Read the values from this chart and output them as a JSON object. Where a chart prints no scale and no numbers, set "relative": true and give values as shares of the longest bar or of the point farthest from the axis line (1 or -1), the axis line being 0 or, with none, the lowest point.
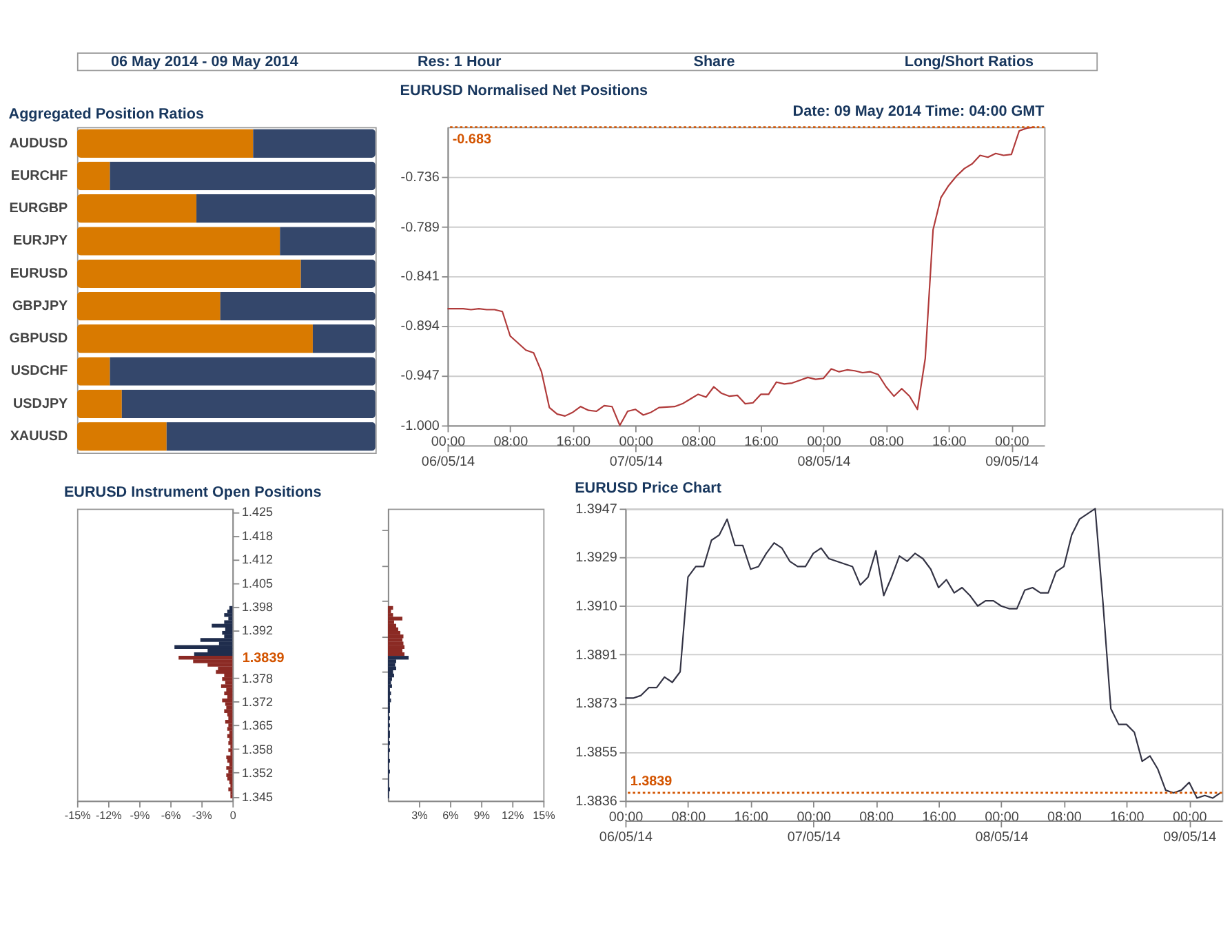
{
  "chart_data": [
    {
      "type": "bar",
      "title": "Aggregated Position Ratios",
      "orientation": "horizontal",
      "stacked": true,
      "relative": true,
      "categories": [
        "AUDUSD",
        "EURCHF",
        "EURGBP",
        "EURJPY",
        "EURUSD",
        "GBPJPY",
        "GBPUSD",
        "USDCHF",
        "USDJPY",
        "XAUUSD"
      ],
      "series": [
        {
          "color": "#d97a00",
          "values": [
            0.59,
            0.11,
            0.4,
            0.68,
            0.75,
            0.48,
            0.79,
            0.11,
            0.15,
            0.3
          ]
        },
        {
          "color": "#34476b",
          "values": [
            0.41,
            0.89,
            0.6,
            0.32,
            0.25,
            0.52,
            0.21,
            0.89,
            0.85,
            0.7
          ]
        }
      ],
      "annotations": [
        "06 May 2014 - 09 May 2014",
        "Res: 1 Hour",
        "Share",
        "Long/Short Ratios"
      ]
    },
    {
      "type": "line",
      "title": "EURUSD Normalised Net Positions",
      "grid": "y",
      "xlim": [
        "2014-05-06T00:00",
        "2014-05-09T04:12"
      ],
      "xticks": [
        {
          "value": "2014-05-06T00:00",
          "label": "00:00"
        },
        {
          "value": "2014-05-06T08:00",
          "label": "08:00"
        },
        {
          "value": "2014-05-06T16:00",
          "label": "16:00"
        },
        {
          "value": "2014-05-07T00:00",
          "label": "00:00"
        },
        {
          "value": "2014-05-07T08:00",
          "label": "08:00"
        },
        {
          "value": "2014-05-07T16:00",
          "label": "16:00"
        },
        {
          "value": "2014-05-08T00:00",
          "label": "00:00"
        },
        {
          "value": "2014-05-08T08:00",
          "label": "08:00"
        },
        {
          "value": "2014-05-08T16:00",
          "label": "16:00"
        },
        {
          "value": "2014-05-09T00:00",
          "label": "00:00"
        }
      ],
      "x2lim": [
        "2014-05-06T00:00",
        "2014-05-09T04:12"
      ],
      "x2ticks": [
        {
          "value": "2014-05-06",
          "label": "06/05/14"
        },
        {
          "value": "2014-05-07",
          "label": "07/05/14"
        },
        {
          "value": "2014-05-08",
          "label": "08/05/14"
        },
        {
          "value": "2014-05-09",
          "label": "09/05/14"
        }
      ],
      "ylim": [
        -1.0,
        -0.683
      ],
      "yticks": [
        {
          "value": -1.0,
          "label": "-1.000"
        },
        {
          "value": -0.947,
          "label": "-0.947"
        },
        {
          "value": -0.894,
          "label": "-0.894"
        },
        {
          "value": -0.841,
          "label": "-0.841"
        },
        {
          "value": -0.789,
          "label": "-0.789"
        },
        {
          "value": -0.736,
          "label": "-0.736"
        }
      ],
      "series": [
        {
          "color": "#b03a3a",
          "x": [
            "2014-05-06T00:00",
            "2014-05-06T02:00",
            "2014-05-06T03:00",
            "2014-05-06T04:00",
            "2014-05-06T05:00",
            "2014-05-06T06:00",
            "2014-05-06T07:00",
            "2014-05-06T08:00",
            "2014-05-06T10:00",
            "2014-05-06T11:00",
            "2014-05-06T12:00",
            "2014-05-06T13:00",
            "2014-05-06T14:00",
            "2014-05-06T15:00",
            "2014-05-06T16:00",
            "2014-05-06T17:00",
            "2014-05-06T18:00",
            "2014-05-06T19:00",
            "2014-05-06T20:00",
            "2014-05-06T21:00",
            "2014-05-06T22:00",
            "2014-05-06T23:00",
            "2014-05-07T00:00",
            "2014-05-07T01:00",
            "2014-05-07T02:00",
            "2014-05-07T03:00",
            "2014-05-07T05:00",
            "2014-05-07T06:00",
            "2014-05-07T07:00",
            "2014-05-07T08:00",
            "2014-05-07T09:00",
            "2014-05-07T10:00",
            "2014-05-07T11:00",
            "2014-05-07T12:00",
            "2014-05-07T13:00",
            "2014-05-07T14:00",
            "2014-05-07T15:00",
            "2014-05-07T16:00",
            "2014-05-07T17:00",
            "2014-05-07T18:00",
            "2014-05-07T19:00",
            "2014-05-07T20:00",
            "2014-05-07T21:00",
            "2014-05-07T22:00",
            "2014-05-07T23:00",
            "2014-05-08T00:00",
            "2014-05-08T01:00",
            "2014-05-08T02:00",
            "2014-05-08T03:00",
            "2014-05-08T04:00",
            "2014-05-08T05:00",
            "2014-05-08T06:00",
            "2014-05-08T07:00",
            "2014-05-08T08:00",
            "2014-05-08T09:00",
            "2014-05-08T10:00",
            "2014-05-08T11:00",
            "2014-05-08T12:00",
            "2014-05-08T13:00",
            "2014-05-08T14:00",
            "2014-05-08T15:00",
            "2014-05-08T16:00",
            "2014-05-08T17:00",
            "2014-05-08T18:00",
            "2014-05-08T19:00",
            "2014-05-08T20:00",
            "2014-05-08T21:00",
            "2014-05-08T22:00",
            "2014-05-08T23:00",
            "2014-05-09T00:00",
            "2014-05-09T01:00",
            "2014-05-09T02:00",
            "2014-05-09T03:00"
          ],
          "values": [
            -0.876,
            -0.876,
            -0.877,
            -0.876,
            -0.877,
            -0.877,
            -0.879,
            -0.905,
            -0.92,
            -0.923,
            -0.943,
            -0.981,
            -0.988,
            -0.99,
            -0.986,
            -0.98,
            -0.984,
            -0.985,
            -0.979,
            -0.98,
            -1.0,
            -0.985,
            -0.983,
            -0.989,
            -0.986,
            -0.981,
            -0.98,
            -0.977,
            -0.972,
            -0.967,
            -0.97,
            -0.959,
            -0.966,
            -0.969,
            -0.968,
            -0.977,
            -0.976,
            -0.967,
            -0.967,
            -0.954,
            -0.956,
            -0.955,
            -0.952,
            -0.949,
            -0.951,
            -0.95,
            -0.94,
            -0.943,
            -0.941,
            -0.942,
            -0.944,
            -0.943,
            -0.946,
            -0.959,
            -0.969,
            -0.961,
            -0.969,
            -0.983,
            -0.929,
            -0.792,
            -0.758,
            -0.745,
            -0.735,
            -0.727,
            -0.722,
            -0.713,
            -0.715,
            -0.711,
            -0.713,
            -0.712,
            -0.687,
            -0.684,
            -0.683
          ]
        }
      ],
      "ref_lines": [
        {
          "axis": "y",
          "value": -0.683,
          "label": "-0.683",
          "color": "#d35400",
          "line_style": "dotted"
        }
      ],
      "annotations": [
        "Date: 09 May 2014 Time: 04:00 GMT"
      ]
    },
    {
      "type": "bar",
      "title": "EURUSD Instrument Open Positions",
      "orientation": "horizontal",
      "xlim": [
        -15,
        0
      ],
      "xticks": [
        {
          "value": -15,
          "label": "-15%"
        },
        {
          "value": -12,
          "label": "-12%"
        },
        {
          "value": -9,
          "label": "-9%"
        },
        {
          "value": -6,
          "label": "-6%"
        },
        {
          "value": -3,
          "label": "-3%"
        },
        0
      ],
      "ylim": [
        1.3438,
        1.4259
      ],
      "yticks": [
        {
          "value": 1.345,
          "label": "1.345"
        },
        {
          "value": 1.3517,
          "label": "1.352"
        },
        {
          "value": 1.3583,
          "label": "1.358"
        },
        {
          "value": 1.365,
          "label": "1.365"
        },
        {
          "value": 1.3717,
          "label": "1.372"
        },
        {
          "value": 1.3783,
          "label": "1.378"
        },
        {
          "value": 1.3917,
          "label": "1.392"
        },
        {
          "value": 1.3983,
          "label": "1.398"
        },
        {
          "value": 1.405,
          "label": "1.405"
        },
        {
          "value": 1.4117,
          "label": "1.412"
        },
        {
          "value": 1.4183,
          "label": "1.418"
        },
        {
          "value": 1.425,
          "label": "1.425"
        }
      ],
      "series": [
        {
          "color": "#1f2d4d",
          "x": [
            1.398,
            1.397,
            1.396,
            1.395,
            1.394,
            1.393,
            1.392,
            1.391,
            1.39,
            1.389,
            1.388,
            1.387,
            1.386,
            1.385
          ],
          "values": [
            -0.3,
            -0.5,
            -0.8,
            -0.4,
            -0.8,
            -2.0,
            -0.7,
            -1.0,
            -0.8,
            -3.1,
            -1.3,
            -5.6,
            -2.4,
            -3.7
          ]
        },
        {
          "color": "#8b2a24",
          "x": [
            1.384,
            1.383,
            1.382,
            1.381,
            1.38,
            1.379,
            1.378,
            1.377,
            1.376,
            1.375,
            1.374,
            1.373,
            1.372,
            1.371,
            1.37,
            1.369,
            1.368,
            1.367,
            1.366,
            1.365,
            1.364,
            1.363,
            1.362,
            1.361,
            1.36,
            1.359,
            1.358,
            1.357,
            1.356,
            1.355,
            1.354,
            1.353,
            1.352,
            1.351,
            1.35,
            1.349,
            1.348,
            1.347,
            1.346,
            1.345
          ],
          "values": [
            -5.2,
            -3.8,
            -2.4,
            -1.4,
            -1.6,
            -0.8,
            -1.0,
            -0.7,
            -1.1,
            -0.6,
            -0.8,
            -0.5,
            -1.0,
            -0.7,
            -0.6,
            -0.8,
            -0.5,
            -0.4,
            -0.7,
            -0.4,
            -0.5,
            -0.3,
            -0.5,
            -0.3,
            -0.4,
            -0.2,
            -0.4,
            -0.2,
            -0.6,
            -0.5,
            -0.3,
            -0.6,
            -0.4,
            -0.6,
            -0.5,
            -0.3,
            -0.2,
            -0.4,
            -0.2,
            -0.2
          ]
        }
      ],
      "annotations": [
        {
          "text": "1.3839",
          "x": 0,
          "y": 1.3839
        }
      ]
    },
    {
      "type": "bar",
      "orientation": "horizontal",
      "tick_labels": "x",
      "xlim": [
        0,
        15
      ],
      "xticks": [
        {
          "value": 3,
          "label": "3%"
        },
        {
          "value": 6,
          "label": "6%"
        },
        {
          "value": 9,
          "label": "9%"
        },
        {
          "value": 12,
          "label": "12%"
        },
        {
          "value": 15,
          "label": "15%"
        }
      ],
      "ylim": [
        1.3438,
        1.4259
      ],
      "series": [
        {
          "color": "#8b2a24",
          "x": [
            1.398,
            1.397,
            1.396,
            1.395,
            1.394,
            1.393,
            1.392,
            1.391,
            1.39,
            1.389,
            1.388,
            1.387,
            1.386,
            1.385
          ],
          "values": [
            0.5,
            0.3,
            0.5,
            1.4,
            0.6,
            0.8,
            1.0,
            1.2,
            1.5,
            1.4,
            1.5,
            1.6,
            1.4,
            1.6
          ]
        },
        {
          "color": "#1f2d4d",
          "x": [
            1.384,
            1.383,
            1.382,
            1.381,
            1.38,
            1.379,
            1.378,
            1.377,
            1.376,
            1.375,
            1.374,
            1.373,
            1.372,
            1.371,
            1.37,
            1.369,
            1.368,
            1.367,
            1.366,
            1.365,
            1.364,
            1.363,
            1.362,
            1.361,
            1.36,
            1.359,
            1.358,
            1.357,
            1.356,
            1.355,
            1.354,
            1.353,
            1.352,
            1.351,
            1.35,
            1.349,
            1.348,
            1.347,
            1.346,
            1.345
          ],
          "values": [
            2.0,
            0.8,
            0.7,
            0.8,
            0.5,
            0.6,
            0.4,
            0.3,
            0.4,
            0.2,
            0.3,
            0.2,
            0.3,
            0.2,
            0.2,
            0.2,
            0.1,
            0.2,
            0.1,
            0.2,
            0.1,
            0.2,
            0.2,
            0.1,
            0.2,
            0.1,
            0.2,
            0.1,
            0.1,
            0.2,
            0.1,
            0.1,
            0.2,
            0.1,
            0.1,
            0.1,
            0.1,
            0.2,
            0.1,
            0.1
          ]
        }
      ]
    },
    {
      "type": "line",
      "title": "EURUSD Price Chart",
      "grid": "y",
      "xlim": [
        "2014-05-06T00:00",
        "2014-05-09T04:12"
      ],
      "xticks": [
        {
          "value": "2014-05-06T00:00",
          "label": "00:00"
        },
        {
          "value": "2014-05-06T08:00",
          "label": "08:00"
        },
        {
          "value": "2014-05-06T16:00",
          "label": "16:00"
        },
        {
          "value": "2014-05-07T00:00",
          "label": "00:00"
        },
        {
          "value": "2014-05-07T08:00",
          "label": "08:00"
        },
        {
          "value": "2014-05-07T16:00",
          "label": "16:00"
        },
        {
          "value": "2014-05-08T00:00",
          "label": "00:00"
        },
        {
          "value": "2014-05-08T08:00",
          "label": "08:00"
        },
        {
          "value": "2014-05-08T16:00",
          "label": "16:00"
        },
        {
          "value": "2014-05-09T00:00",
          "label": "00:00"
        }
      ],
      "x2lim": [
        "2014-05-06T00:00",
        "2014-05-09T04:12"
      ],
      "x2ticks": [
        {
          "value": "2014-05-06",
          "label": "06/05/14"
        },
        {
          "value": "2014-05-07",
          "label": "07/05/14"
        },
        {
          "value": "2014-05-08",
          "label": "08/05/14"
        },
        {
          "value": "2014-05-09",
          "label": "09/05/14"
        }
      ],
      "ylim": [
        1.3836,
        1.3947
      ],
      "yticks": [
        {
          "value": 1.3836,
          "label": "1.3836"
        },
        {
          "value": 1.38545,
          "label": "1.3855"
        },
        {
          "value": 1.3873,
          "label": "1.3873"
        },
        {
          "value": 1.38915,
          "label": "1.3891"
        },
        {
          "value": 1.391,
          "label": "1.3910"
        },
        {
          "value": 1.39285,
          "label": "1.3929"
        },
        {
          "value": 1.3947,
          "label": "1.3947"
        }
      ],
      "series": [
        {
          "color": "#333344",
          "x": [
            "2014-05-06T00:00",
            "2014-05-06T01:00",
            "2014-05-06T02:00",
            "2014-05-06T03:00",
            "2014-05-06T04:00",
            "2014-05-06T05:00",
            "2014-05-06T06:00",
            "2014-05-06T07:00",
            "2014-05-06T08:00",
            "2014-05-06T09:00",
            "2014-05-06T10:00",
            "2014-05-06T11:00",
            "2014-05-06T12:00",
            "2014-05-06T13:00",
            "2014-05-06T14:00",
            "2014-05-06T15:00",
            "2014-05-06T16:00",
            "2014-05-06T17:00",
            "2014-05-06T18:00",
            "2014-05-06T19:00",
            "2014-05-06T20:00",
            "2014-05-06T21:00",
            "2014-05-06T22:00",
            "2014-05-06T23:00",
            "2014-05-07T00:00",
            "2014-05-07T01:00",
            "2014-05-07T02:00",
            "2014-05-07T05:00",
            "2014-05-07T06:00",
            "2014-05-07T07:00",
            "2014-05-07T08:00",
            "2014-05-07T09:00",
            "2014-05-07T10:00",
            "2014-05-07T11:00",
            "2014-05-07T12:00",
            "2014-05-07T13:00",
            "2014-05-07T14:00",
            "2014-05-07T15:00",
            "2014-05-07T16:00",
            "2014-05-07T17:00",
            "2014-05-07T18:00",
            "2014-05-07T19:00",
            "2014-05-07T20:00",
            "2014-05-07T21:00",
            "2014-05-07T22:00",
            "2014-05-07T23:00",
            "2014-05-08T00:00",
            "2014-05-08T01:00",
            "2014-05-08T02:00",
            "2014-05-08T03:00",
            "2014-05-08T04:00",
            "2014-05-08T05:00",
            "2014-05-08T06:00",
            "2014-05-08T07:00",
            "2014-05-08T08:00",
            "2014-05-08T09:00",
            "2014-05-08T10:00",
            "2014-05-08T12:00",
            "2014-05-08T13:00",
            "2014-05-08T14:00",
            "2014-05-08T15:00",
            "2014-05-08T16:00",
            "2014-05-08T17:00",
            "2014-05-08T18:00",
            "2014-05-08T19:00",
            "2014-05-08T20:00",
            "2014-05-08T21:00",
            "2014-05-08T22:00",
            "2014-05-08T23:00",
            "2014-05-09T00:00",
            "2014-05-09T01:00",
            "2014-05-09T02:00",
            "2014-05-09T03:00",
            "2014-05-09T04:00"
          ],
          "values": [
            1.3875,
            1.3875,
            1.3876,
            1.3879,
            1.3879,
            1.3883,
            1.3881,
            1.3885,
            1.3921,
            1.3925,
            1.3925,
            1.3935,
            1.3937,
            1.3943,
            1.3933,
            1.3933,
            1.3924,
            1.3925,
            1.393,
            1.3934,
            1.3932,
            1.3927,
            1.3925,
            1.3925,
            1.393,
            1.3932,
            1.3928,
            1.3925,
            1.3918,
            1.3921,
            1.3931,
            1.3914,
            1.3921,
            1.3929,
            1.3927,
            1.393,
            1.3928,
            1.3924,
            1.3917,
            1.392,
            1.3915,
            1.3917,
            1.3914,
            1.391,
            1.3912,
            1.3912,
            1.391,
            1.3909,
            1.3909,
            1.3916,
            1.3917,
            1.3915,
            1.3915,
            1.3923,
            1.3925,
            1.3937,
            1.3943,
            1.3947,
            1.3911,
            1.3871,
            1.3865,
            1.3865,
            1.3862,
            1.3851,
            1.3853,
            1.3848,
            1.384,
            1.3839,
            1.384,
            1.3843,
            1.3837,
            1.3838,
            1.3837,
            1.3839
          ]
        }
      ],
      "ref_lines": [
        {
          "axis": "y",
          "value": 1.3839,
          "label": "1.3839",
          "color": "#d35400",
          "line_style": "dotted"
        }
      ]
    }
  ]
}
